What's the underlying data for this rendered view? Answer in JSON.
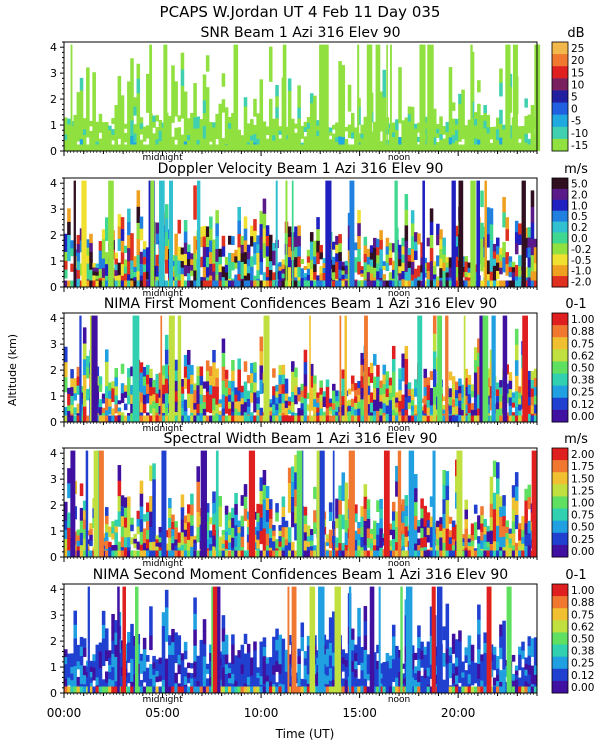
{
  "header": {
    "title": "PCAPS W.Jordan UT   4 Feb 11 Day 035"
  },
  "figure": {
    "ylabel": "Altitude (km)",
    "xlabel": "Time (UT)",
    "x_ticks": [
      "00:00",
      "05:00",
      "10:00",
      "15:00",
      "20:00"
    ],
    "x_tick_values": [
      0,
      5,
      10,
      15,
      20
    ],
    "xlim": [
      0,
      24
    ],
    "ylim": [
      0,
      4.2
    ],
    "y_ticks": [
      "0",
      "1",
      "2",
      "3",
      "4"
    ],
    "y_tick_values": [
      0,
      1,
      2,
      3,
      4
    ],
    "marker_labels": {
      "midnight": "midnight",
      "noon": "noon"
    },
    "marker_times": {
      "midnight": 5,
      "noon": 17
    }
  },
  "chart_data": [
    {
      "type": "heatmap",
      "title": "SNR Beam 1 Azi 316 Elev 90",
      "unit": "dB",
      "colorbar_labels": [
        "25",
        "20",
        "15",
        "10",
        "5",
        "0",
        "-5",
        "-10",
        "-15"
      ],
      "colorbar_colors": [
        "#f2b84a",
        "#f07830",
        "#e02020",
        "#7a2060",
        "#2020a0",
        "#2060e0",
        "#20a8e0",
        "#40d0b0",
        "#90e040"
      ],
      "ylim": [
        0,
        4.2
      ],
      "xlim": [
        0,
        24
      ]
    },
    {
      "type": "heatmap",
      "title": "Doppler Velocity Beam 1 Azi 316 Elev 90",
      "unit": "m/s",
      "colorbar_labels": [
        "5.0",
        "2.0",
        "1.0",
        "0.5",
        "0.2",
        "0.0",
        "-0.2",
        "-0.5",
        "-1.0",
        "-2.0"
      ],
      "colorbar_colors": [
        "#301020",
        "#5a1a8a",
        "#2020c0",
        "#2080e0",
        "#30c0d0",
        "#40d890",
        "#90e040",
        "#f0e030",
        "#f0a020",
        "#e03020"
      ],
      "ylim": [
        0,
        4.2
      ],
      "xlim": [
        0,
        24
      ]
    },
    {
      "type": "heatmap",
      "title": "NIMA First Moment Confidences Beam 1 Azi 316 Elev 90",
      "unit": "0-1",
      "colorbar_labels": [
        "1.00",
        "0.88",
        "0.75",
        "0.62",
        "0.50",
        "0.38",
        "0.25",
        "0.12",
        "0.00"
      ],
      "colorbar_colors": [
        "#e02020",
        "#f07830",
        "#f0c030",
        "#c0e040",
        "#60e060",
        "#30d0b0",
        "#20a0e0",
        "#2040d0",
        "#4010a0"
      ],
      "ylim": [
        0,
        4.2
      ],
      "xlim": [
        0,
        24
      ]
    },
    {
      "type": "heatmap",
      "title": "Spectral Width Beam 1 Azi 316 Elev 90",
      "unit": "m/s",
      "colorbar_labels": [
        "2.00",
        "1.75",
        "1.50",
        "1.25",
        "1.00",
        "0.75",
        "0.50",
        "0.25",
        "0.00"
      ],
      "colorbar_colors": [
        "#e02020",
        "#f07830",
        "#f0c030",
        "#c0e040",
        "#60e060",
        "#30d0b0",
        "#20a0e0",
        "#2040d0",
        "#4010a0"
      ],
      "ylim": [
        0,
        4.2
      ],
      "xlim": [
        0,
        24
      ]
    },
    {
      "type": "heatmap",
      "title": "NIMA Second Moment Confidences Beam 1 Azi 316 Elev 90",
      "unit": "0-1",
      "colorbar_labels": [
        "1.00",
        "0.88",
        "0.75",
        "0.62",
        "0.50",
        "0.38",
        "0.25",
        "0.12",
        "0.00"
      ],
      "colorbar_colors": [
        "#e02020",
        "#f07830",
        "#f0c030",
        "#c0e040",
        "#60e060",
        "#30d0b0",
        "#20a0e0",
        "#2040d0",
        "#4010a0"
      ],
      "ylim": [
        0,
        4.2
      ],
      "xlim": [
        0,
        24
      ]
    }
  ]
}
